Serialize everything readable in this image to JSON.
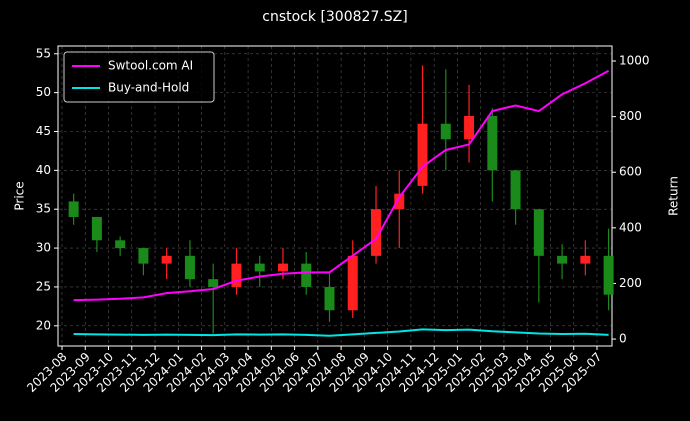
{
  "chart_data": {
    "type": "candlestick",
    "title": "cnstock [300827.SZ]",
    "ylabel": "Price",
    "y2label": "Return",
    "categories": [
      "2023-08",
      "2023-09",
      "2023-10",
      "2023-11",
      "2023-12",
      "2024-01",
      "2024-02",
      "2024-03",
      "2024-04",
      "2024-05",
      "2024-06",
      "2024-07",
      "2024-08",
      "2024-09",
      "2024-10",
      "2024-11",
      "2024-12",
      "2025-01",
      "2025-02",
      "2025-03",
      "2025-04",
      "2025-05",
      "2025-06",
      "2025-07"
    ],
    "open": [
      36,
      34,
      31,
      30,
      28,
      29,
      26,
      25,
      28,
      27,
      28,
      25,
      22,
      29,
      35,
      38,
      46,
      44,
      47,
      40,
      35,
      29,
      28,
      29
    ],
    "high": [
      37,
      34,
      31.5,
      30,
      30,
      31,
      28,
      30,
      29,
      30,
      29.5,
      27,
      31,
      38,
      40,
      53.5,
      53,
      51,
      48,
      40,
      35,
      30.5,
      31,
      32.5
    ],
    "low": [
      33,
      29.5,
      29,
      26.5,
      26,
      25,
      19,
      24,
      25,
      26,
      24,
      20.5,
      21,
      28,
      30,
      37,
      40,
      41,
      36,
      33,
      23,
      26,
      26.5,
      22
    ],
    "close": [
      34,
      31,
      30,
      28,
      29,
      26,
      25,
      28,
      27,
      28,
      25,
      22,
      29,
      35,
      37,
      46,
      44,
      47,
      40,
      35,
      29,
      28,
      29,
      24
    ],
    "up_color": "#ff2020",
    "down_color": "#1a8a1a",
    "series": [
      {
        "name": "Swtool.com AI",
        "color": "#ff00ff",
        "axis": "y2",
        "values": [
          140,
          142,
          145,
          150,
          165,
          172,
          180,
          210,
          225,
          235,
          240,
          240,
          300,
          360,
          510,
          620,
          680,
          700,
          820,
          840,
          820,
          880,
          920,
          965
        ]
      },
      {
        "name": "Buy-and-Hold",
        "color": "#00e5e5",
        "axis": "y2",
        "values": [
          18,
          17,
          16,
          15,
          16,
          15,
          14,
          17,
          16,
          17,
          15,
          12,
          17,
          22,
          27,
          35,
          32,
          34,
          28,
          24,
          20,
          18,
          19,
          15
        ]
      }
    ],
    "ylim": [
      17.4,
      56
    ],
    "yticks": [
      20,
      25,
      30,
      35,
      40,
      45,
      50,
      55
    ],
    "y2lim": [
      -25,
      1054
    ],
    "y2ticks": [
      0,
      200,
      400,
      600,
      800,
      1000
    ],
    "grid": true,
    "legend": "upper left"
  }
}
